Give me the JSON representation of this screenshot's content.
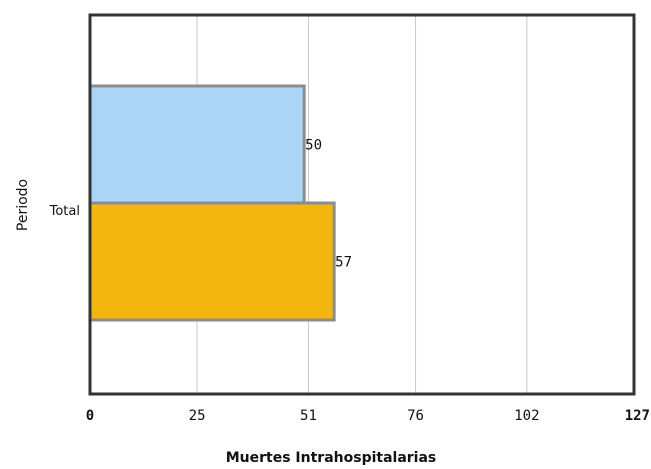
{
  "chart_data": {
    "type": "bar",
    "orientation": "horizontal",
    "categories": [
      "Total"
    ],
    "series": [
      {
        "values": [
          50
        ],
        "color": "#acd4f5"
      },
      {
        "values": [
          57
        ],
        "color": "#f2b60e"
      }
    ],
    "data_labels": [
      "50",
      "57"
    ],
    "xlabel": "Muertes Intrahospitalarias",
    "ylabel": "Periodo",
    "xlim": [
      0,
      127
    ],
    "x_ticks": [
      0,
      25,
      51,
      76,
      102,
      127
    ],
    "x_tick_labels": [
      "0",
      "25",
      "51",
      "76",
      "102",
      "127"
    ],
    "grid": "vertical",
    "legend": "none"
  }
}
